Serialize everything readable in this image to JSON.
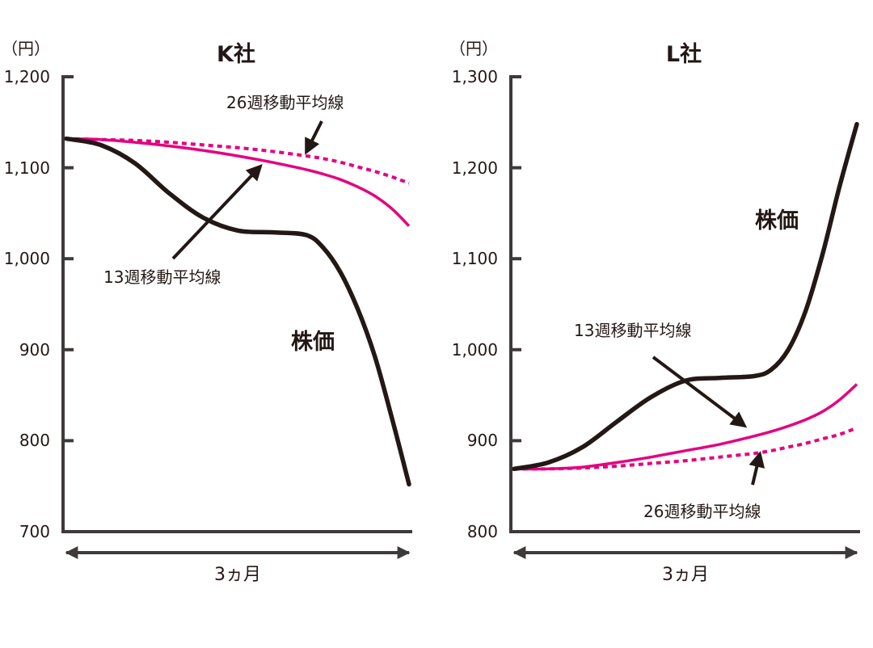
{
  "colors": {
    "price": "#231815",
    "ma13": "#E4007F",
    "ma26": "#E4007F",
    "axis": "#3E3A39"
  },
  "chart_data": [
    {
      "type": "line",
      "title": "K社",
      "ylabel": "（円）",
      "xlabel": "3ヵ月",
      "ylim": [
        700,
        1200
      ],
      "yticks": [
        1200,
        1100,
        1000,
        900,
        800,
        700
      ],
      "ytick_labels": [
        "1,200",
        "1,100",
        "1,000",
        "900",
        "800",
        "700"
      ],
      "grid": false,
      "x": [
        0,
        0.1,
        0.2,
        0.3,
        0.4,
        0.5,
        0.6,
        0.7,
        0.75,
        0.8,
        0.85,
        0.9,
        0.95,
        1.0
      ],
      "series": [
        {
          "name": "株価",
          "style": "solid-thick",
          "values": [
            1132,
            1125,
            1105,
            1072,
            1045,
            1031,
            1029,
            1026,
            1012,
            985,
            945,
            893,
            825,
            752
          ]
        },
        {
          "name": "13週移動平均線",
          "style": "solid",
          "values": [
            1132,
            1131,
            1128,
            1124,
            1119,
            1113,
            1106,
            1098,
            1093,
            1087,
            1079,
            1069,
            1055,
            1036
          ]
        },
        {
          "name": "26週移動平均線",
          "style": "dashed",
          "values": [
            1132,
            1131,
            1130,
            1128,
            1125,
            1122,
            1118,
            1113,
            1110,
            1106,
            1101,
            1096,
            1090,
            1083
          ]
        }
      ],
      "annotations": [
        {
          "text": "26週移動平均線",
          "target": "26週移動平均線"
        },
        {
          "text": "13週移動平均線",
          "target": "13週移動平均線"
        },
        {
          "text": "株価",
          "target": "株価"
        }
      ]
    },
    {
      "type": "line",
      "title": "L社",
      "ylabel": "（円）",
      "xlabel": "3ヵ月",
      "ylim": [
        800,
        1300
      ],
      "yticks": [
        1300,
        1200,
        1100,
        1000,
        900,
        800
      ],
      "ytick_labels": [
        "1,300",
        "1,200",
        "1,100",
        "1,000",
        "900",
        "800"
      ],
      "grid": false,
      "x": [
        0,
        0.1,
        0.2,
        0.3,
        0.4,
        0.5,
        0.6,
        0.7,
        0.75,
        0.8,
        0.85,
        0.9,
        0.95,
        1.0
      ],
      "series": [
        {
          "name": "株価",
          "style": "solid-thick",
          "values": [
            869,
            876,
            893,
            921,
            948,
            966,
            969,
            971,
            978,
            1000,
            1042,
            1105,
            1180,
            1248
          ]
        },
        {
          "name": "13週移動平均線",
          "style": "solid",
          "values": [
            869,
            869,
            871,
            876,
            882,
            889,
            896,
            905,
            910,
            916,
            923,
            932,
            945,
            962
          ]
        },
        {
          "name": "26週移動平均線",
          "style": "dashed",
          "values": [
            869,
            869,
            870,
            872,
            875,
            878,
            882,
            886,
            889,
            893,
            897,
            902,
            907,
            914
          ]
        }
      ],
      "annotations": [
        {
          "text": "株価",
          "target": "株価"
        },
        {
          "text": "13週移動平均線",
          "target": "13週移動平均線"
        },
        {
          "text": "26週移動平均線",
          "target": "26週移動平均線"
        }
      ]
    }
  ]
}
